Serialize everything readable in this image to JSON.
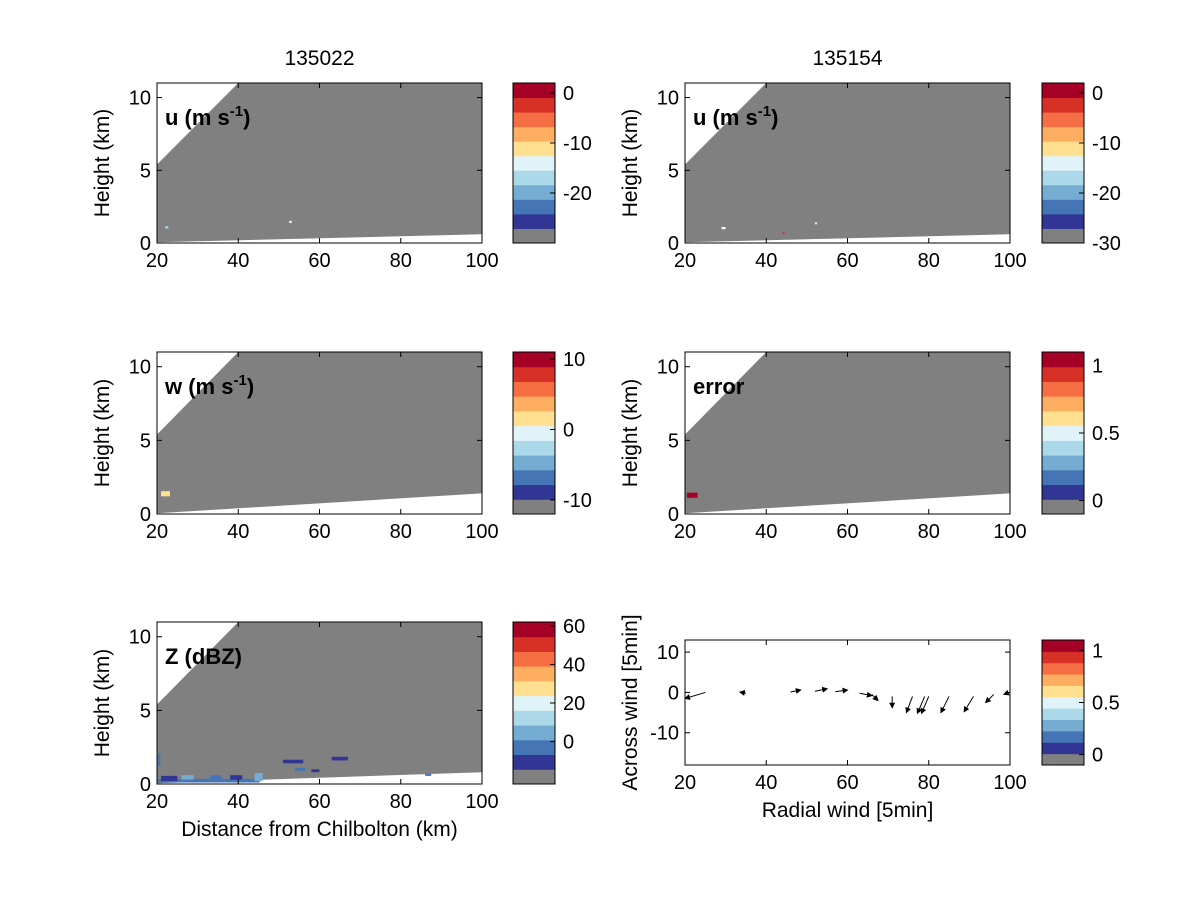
{
  "colorbar_colors": [
    "#808080",
    "#313695",
    "#4575b4",
    "#74add1",
    "#abd9e9",
    "#e0f3f8",
    "#fee090",
    "#fdae61",
    "#f46d43",
    "#d73027",
    "#a50026"
  ],
  "colors": {
    "masked_gray": "#808080",
    "arrow": "#000000"
  },
  "chart_data": [
    {
      "type": "heatmap",
      "title": "135022",
      "panel_label": "u (m s",
      "panel_label_sup": "-1",
      "panel_label_end": ")",
      "ylabel": "Height (km)",
      "xlabel": "",
      "xlim": [
        20,
        100
      ],
      "ylim": [
        0,
        11
      ],
      "xticks": [
        "20",
        "40",
        "60",
        "80",
        "100"
      ],
      "yticks": [
        "0",
        "5",
        "10"
      ],
      "colorbar_ticks": [
        {
          "value": 0,
          "label": "0"
        },
        {
          "value": -10,
          "label": "-10"
        },
        {
          "value": -20,
          "label": "-20"
        }
      ],
      "colorbar_range": [
        -30,
        2
      ],
      "scan": {
        "top_left_height": 5.4,
        "top_edge_x_at_ymax": 40,
        "bottom_height_at_xmax": 0.6
      },
      "features": [
        {
          "x": 22,
          "y": 1.0,
          "w": 0.8,
          "h": 0.15,
          "color": "#abd9e9"
        },
        {
          "x": 52.5,
          "y": 1.4,
          "w": 0.7,
          "h": 0.12,
          "color": "#e0f3f8"
        }
      ]
    },
    {
      "type": "heatmap",
      "title": "135154",
      "panel_label": "u (m s",
      "panel_label_sup": "-1",
      "panel_label_end": ")",
      "ylabel": "Height (km)",
      "xlabel": "",
      "xlim": [
        20,
        100
      ],
      "ylim": [
        0,
        11
      ],
      "xticks": [
        "20",
        "40",
        "60",
        "80",
        "100"
      ],
      "yticks": [
        "0",
        "5",
        "10"
      ],
      "colorbar_ticks": [
        {
          "value": 0,
          "label": "0"
        },
        {
          "value": -10,
          "label": "-10"
        },
        {
          "value": -20,
          "label": "-20"
        },
        {
          "value": -30,
          "label": "-30"
        }
      ],
      "colorbar_range": [
        -30,
        2
      ],
      "scan": {
        "top_left_height": 5.4,
        "top_edge_x_at_ymax": 40,
        "bottom_height_at_xmax": 0.6
      },
      "features": [
        {
          "x": 29,
          "y": 0.95,
          "w": 1.0,
          "h": 0.15,
          "color": "#ffffff"
        },
        {
          "x": 44,
          "y": 0.6,
          "w": 0.4,
          "h": 0.15,
          "color": "#d73027"
        },
        {
          "x": 52,
          "y": 1.3,
          "w": 0.5,
          "h": 0.12,
          "color": "#e0f3f8"
        }
      ]
    },
    {
      "type": "heatmap",
      "title": "",
      "panel_label": "w (m s",
      "panel_label_sup": "-1",
      "panel_label_end": ")",
      "ylabel": "Height (km)",
      "xlabel": "",
      "xlim": [
        20,
        100
      ],
      "ylim": [
        0,
        11
      ],
      "xticks": [
        "20",
        "40",
        "60",
        "80",
        "100"
      ],
      "yticks": [
        "0",
        "5",
        "10"
      ],
      "colorbar_ticks": [
        {
          "value": 10,
          "label": "10"
        },
        {
          "value": 0,
          "label": "0"
        },
        {
          "value": -10,
          "label": "-10"
        }
      ],
      "colorbar_range": [
        -12,
        11
      ],
      "scan": {
        "top_left_height": 5.4,
        "top_edge_x_at_ymax": 40,
        "bottom_height_at_xmax": 1.4
      },
      "features": [
        {
          "x": 21,
          "y": 1.2,
          "w": 2.2,
          "h": 0.35,
          "color": "#fee090"
        }
      ]
    },
    {
      "type": "heatmap",
      "title": "",
      "panel_label": "error",
      "panel_label_sup": "",
      "panel_label_end": "",
      "ylabel": "Height (km)",
      "xlabel": "",
      "xlim": [
        20,
        100
      ],
      "ylim": [
        0,
        11
      ],
      "xticks": [
        "20",
        "40",
        "60",
        "80",
        "100"
      ],
      "yticks": [
        "0",
        "5",
        "10"
      ],
      "colorbar_ticks": [
        {
          "value": 1,
          "label": "1"
        },
        {
          "value": 0.5,
          "label": "0.5"
        },
        {
          "value": 0,
          "label": "0"
        }
      ],
      "colorbar_range": [
        -0.1,
        1.1
      ],
      "scan": {
        "top_left_height": 5.4,
        "top_edge_x_at_ymax": 40,
        "bottom_height_at_xmax": 1.4
      },
      "features": [
        {
          "x": 20.5,
          "y": 1.1,
          "w": 2.6,
          "h": 0.35,
          "color": "#a50026"
        }
      ]
    },
    {
      "type": "heatmap",
      "title": "",
      "panel_label": "Z (dBZ)",
      "panel_label_sup": "",
      "panel_label_end": "",
      "ylabel": "Height (km)",
      "xlabel": "Distance from Chilbolton (km)",
      "xlim": [
        20,
        100
      ],
      "ylim": [
        0,
        11
      ],
      "xticks": [
        "20",
        "40",
        "60",
        "80",
        "100"
      ],
      "yticks": [
        "0",
        "5",
        "10"
      ],
      "colorbar_ticks": [
        {
          "value": 60,
          "label": "60"
        },
        {
          "value": 40,
          "label": "40"
        },
        {
          "value": 20,
          "label": "20"
        },
        {
          "value": 0,
          "label": "0"
        }
      ],
      "colorbar_range": [
        -22,
        62
      ],
      "scan": {
        "top_left_height": 5.4,
        "top_edge_x_at_ymax": 40,
        "bottom_height_at_xmax": 0.8
      },
      "features": [
        {
          "x": 20.3,
          "y": 0.1,
          "w": 25,
          "h": 0.25,
          "color": "#4575b4"
        },
        {
          "x": 21,
          "y": 0.2,
          "w": 4,
          "h": 0.35,
          "color": "#313695"
        },
        {
          "x": 26,
          "y": 0.3,
          "w": 3,
          "h": 0.3,
          "color": "#74add1"
        },
        {
          "x": 33,
          "y": 0.25,
          "w": 3,
          "h": 0.35,
          "color": "#4575b4"
        },
        {
          "x": 38,
          "y": 0.3,
          "w": 3,
          "h": 0.3,
          "color": "#313695"
        },
        {
          "x": 44,
          "y": 0.2,
          "w": 2,
          "h": 0.55,
          "color": "#74add1"
        },
        {
          "x": 51,
          "y": 1.4,
          "w": 5,
          "h": 0.25,
          "color": "#313695"
        },
        {
          "x": 54,
          "y": 0.9,
          "w": 2.5,
          "h": 0.2,
          "color": "#4575b4"
        },
        {
          "x": 63,
          "y": 1.6,
          "w": 4,
          "h": 0.25,
          "color": "#313695"
        },
        {
          "x": 58,
          "y": 0.8,
          "w": 2,
          "h": 0.2,
          "color": "#313695"
        },
        {
          "x": 20.3,
          "y": 1.2,
          "w": 0.5,
          "h": 0.9,
          "color": "#4575b4"
        },
        {
          "x": 86,
          "y": 0.55,
          "w": 1.5,
          "h": 0.15,
          "color": "#4575b4"
        }
      ]
    },
    {
      "type": "quiver",
      "title": "",
      "ylabel": "Across wind [5min]",
      "xlabel": "Radial wind [5min]",
      "xlim": [
        20,
        100
      ],
      "ylim": [
        -18,
        13
      ],
      "xticks": [
        "20",
        "40",
        "60",
        "80",
        "100"
      ],
      "yticks": [
        "-10",
        "0",
        "10"
      ],
      "colorbar_ticks": [
        {
          "value": 1,
          "label": "1"
        },
        {
          "value": 0.5,
          "label": "0.5"
        },
        {
          "value": 0,
          "label": "0"
        }
      ],
      "colorbar_range": [
        -0.1,
        1.1
      ],
      "arrows": [
        {
          "x": 25,
          "y": 0.0,
          "dx": -5,
          "dy": -1.5
        },
        {
          "x": 35,
          "y": -0.2,
          "dx": -1.5,
          "dy": 0.3
        },
        {
          "x": 46,
          "y": 0.1,
          "dx": 2.5,
          "dy": 0.5
        },
        {
          "x": 52,
          "y": 0.3,
          "dx": 3,
          "dy": 0.6
        },
        {
          "x": 57,
          "y": 0.2,
          "dx": 3,
          "dy": 0.4
        },
        {
          "x": 63,
          "y": -0.2,
          "dx": 3,
          "dy": -0.6
        },
        {
          "x": 66,
          "y": -0.5,
          "dx": 1.5,
          "dy": -1.5
        },
        {
          "x": 71,
          "y": -1.0,
          "dx": 0,
          "dy": -2.8
        },
        {
          "x": 76,
          "y": -1.0,
          "dx": -1.5,
          "dy": -4.0
        },
        {
          "x": 79,
          "y": -1.0,
          "dx": -1.8,
          "dy": -4.2
        },
        {
          "x": 80,
          "y": -1.0,
          "dx": -1.8,
          "dy": -4.2
        },
        {
          "x": 85,
          "y": -1.0,
          "dx": -2,
          "dy": -4.0
        },
        {
          "x": 91,
          "y": -1.0,
          "dx": -2.3,
          "dy": -3.8
        },
        {
          "x": 96,
          "y": -0.5,
          "dx": -2,
          "dy": -2.0
        },
        {
          "x": 101,
          "y": 0.5,
          "dx": -2.5,
          "dy": -1.0
        }
      ]
    }
  ]
}
